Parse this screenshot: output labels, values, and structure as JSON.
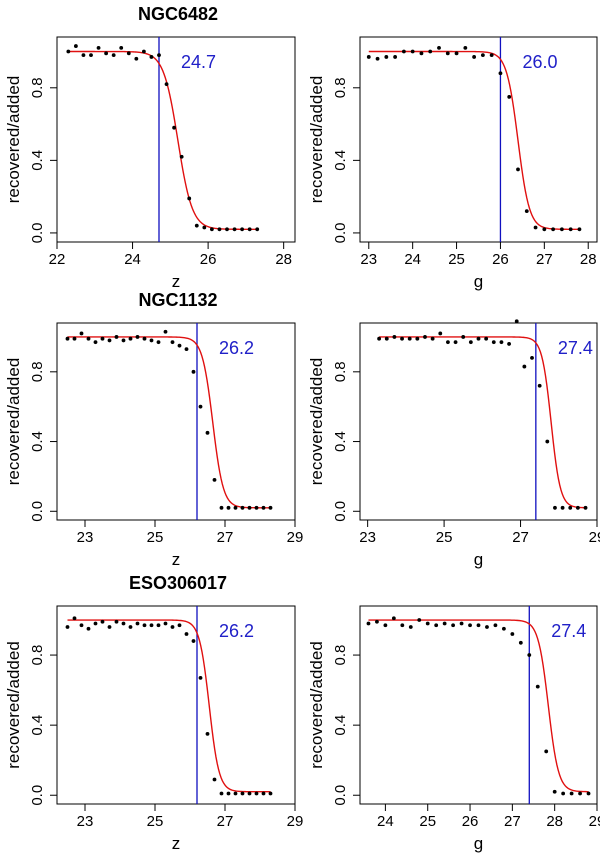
{
  "colors": {
    "curve": "#e01010",
    "limit_line": "#1010c0",
    "limit_text": "#2020c8",
    "points": "#000000"
  },
  "chart_data": [
    {
      "type": "scatter",
      "title": "NGC6482",
      "xlabel": "z",
      "ylabel": "recovered/added",
      "xlim": [
        22.0,
        28.3
      ],
      "ylim": [
        -0.05,
        1.08
      ],
      "xticks": [
        22,
        24,
        26,
        28
      ],
      "yticks": [
        0.0,
        0.4,
        0.8
      ],
      "limit": 24.7,
      "limit_label": "24.7",
      "curve_center": 25.2,
      "curve_width": 0.19,
      "points_x": [
        22.3,
        22.5,
        22.7,
        22.9,
        23.1,
        23.3,
        23.5,
        23.7,
        23.9,
        24.1,
        24.3,
        24.5,
        24.7,
        24.9,
        25.1,
        25.3,
        25.5,
        25.7,
        25.9,
        26.1,
        26.3,
        26.5,
        26.7,
        26.9,
        27.1,
        27.3
      ],
      "points_y": [
        1.0,
        1.03,
        0.98,
        0.98,
        1.02,
        0.99,
        0.98,
        1.02,
        0.99,
        0.96,
        1.0,
        0.97,
        0.98,
        0.82,
        0.58,
        0.42,
        0.19,
        0.04,
        0.03,
        0.02,
        0.02,
        0.02,
        0.02,
        0.02,
        0.02,
        0.02
      ]
    },
    {
      "type": "scatter",
      "title": "",
      "xlabel": "g",
      "ylabel": "recovered/added",
      "xlim": [
        22.8,
        28.2
      ],
      "ylim": [
        -0.05,
        1.08
      ],
      "xticks": [
        23,
        24,
        25,
        26,
        27,
        28
      ],
      "yticks": [
        0.0,
        0.4,
        0.8
      ],
      "limit": 26.0,
      "limit_label": "26.0",
      "curve_center": 26.4,
      "curve_width": 0.13,
      "points_x": [
        23.0,
        23.2,
        23.4,
        23.6,
        23.8,
        24.0,
        24.2,
        24.4,
        24.6,
        24.8,
        25.0,
        25.2,
        25.4,
        25.6,
        25.8,
        26.0,
        26.2,
        26.4,
        26.6,
        26.8,
        27.0,
        27.2,
        27.4,
        27.6,
        27.8
      ],
      "points_y": [
        0.97,
        0.96,
        0.97,
        0.97,
        1.0,
        1.0,
        0.99,
        1.0,
        1.02,
        0.99,
        0.99,
        1.02,
        0.97,
        0.98,
        0.98,
        0.88,
        0.75,
        0.35,
        0.12,
        0.03,
        0.02,
        0.02,
        0.02,
        0.02,
        0.02
      ]
    },
    {
      "type": "scatter",
      "title": "NGC1132",
      "xlabel": "z",
      "ylabel": "recovered/added",
      "xlim": [
        22.2,
        29.0
      ],
      "ylim": [
        -0.05,
        1.08
      ],
      "xticks": [
        23,
        25,
        27,
        29
      ],
      "yticks": [
        0.0,
        0.4,
        0.8
      ],
      "limit": 26.2,
      "limit_label": "26.2",
      "curve_center": 26.65,
      "curve_width": 0.15,
      "points_x": [
        22.5,
        22.7,
        22.9,
        23.1,
        23.3,
        23.5,
        23.7,
        23.9,
        24.1,
        24.3,
        24.5,
        24.7,
        24.9,
        25.1,
        25.3,
        25.5,
        25.7,
        25.9,
        26.1,
        26.3,
        26.5,
        26.7,
        26.9,
        27.1,
        27.3,
        27.5,
        27.7,
        27.9,
        28.1,
        28.3
      ],
      "points_y": [
        0.99,
        0.99,
        1.02,
        0.99,
        0.97,
        0.99,
        0.98,
        1.0,
        0.98,
        0.99,
        1.0,
        0.99,
        0.98,
        0.97,
        1.03,
        0.97,
        0.95,
        0.93,
        0.8,
        0.6,
        0.45,
        0.18,
        0.02,
        0.02,
        0.02,
        0.02,
        0.02,
        0.02,
        0.02,
        0.02
      ]
    },
    {
      "type": "scatter",
      "title": "",
      "xlabel": "g",
      "ylabel": "recovered/added",
      "xlim": [
        22.8,
        29.0
      ],
      "ylim": [
        -0.05,
        1.08
      ],
      "xticks": [
        23,
        25,
        27,
        29
      ],
      "yticks": [
        0.0,
        0.4,
        0.8
      ],
      "limit": 27.4,
      "limit_label": "27.4",
      "curve_center": 27.8,
      "curve_width": 0.12,
      "points_x": [
        23.3,
        23.5,
        23.7,
        23.9,
        24.1,
        24.3,
        24.5,
        24.7,
        24.9,
        25.1,
        25.3,
        25.5,
        25.7,
        25.9,
        26.1,
        26.3,
        26.5,
        26.7,
        26.9,
        27.1,
        27.3,
        27.5,
        27.7,
        27.9,
        28.1,
        28.3,
        28.5,
        28.7
      ],
      "points_y": [
        0.99,
        0.99,
        1.0,
        0.99,
        0.99,
        0.99,
        1.0,
        0.99,
        1.02,
        0.97,
        0.97,
        1.0,
        0.97,
        0.99,
        0.99,
        0.97,
        0.97,
        0.96,
        1.09,
        0.83,
        0.88,
        0.72,
        0.4,
        0.02,
        0.02,
        0.02,
        0.02,
        0.02
      ]
    },
    {
      "type": "scatter",
      "title": "ESO306017",
      "xlabel": "z",
      "ylabel": "recovered/added",
      "xlim": [
        22.2,
        29.0
      ],
      "ylim": [
        -0.05,
        1.08
      ],
      "xticks": [
        23,
        25,
        27,
        29
      ],
      "yticks": [
        0.0,
        0.4,
        0.8
      ],
      "limit": 26.2,
      "limit_label": "26.2",
      "curve_center": 26.55,
      "curve_width": 0.14,
      "points_x": [
        22.5,
        22.7,
        22.9,
        23.1,
        23.3,
        23.5,
        23.7,
        23.9,
        24.1,
        24.3,
        24.5,
        24.7,
        24.9,
        25.1,
        25.3,
        25.5,
        25.7,
        25.9,
        26.1,
        26.3,
        26.5,
        26.7,
        26.9,
        27.1,
        27.3,
        27.5,
        27.7,
        27.9,
        28.1,
        28.3
      ],
      "points_y": [
        0.96,
        1.01,
        0.97,
        0.95,
        0.98,
        0.99,
        0.96,
        0.99,
        0.98,
        0.96,
        0.98,
        0.97,
        0.97,
        0.97,
        0.98,
        0.96,
        0.97,
        0.92,
        0.88,
        0.67,
        0.35,
        0.09,
        0.01,
        0.01,
        0.01,
        0.01,
        0.01,
        0.01,
        0.01,
        0.01
      ]
    },
    {
      "type": "scatter",
      "title": "",
      "xlabel": "g",
      "ylabel": "recovered/added",
      "xlim": [
        23.4,
        29.0
      ],
      "ylim": [
        -0.05,
        1.08
      ],
      "xticks": [
        24,
        25,
        26,
        27,
        28,
        29
      ],
      "yticks": [
        0.0,
        0.4,
        0.8
      ],
      "limit": 27.4,
      "limit_label": "27.4",
      "curve_center": 27.85,
      "curve_width": 0.12,
      "points_x": [
        23.6,
        23.8,
        24.0,
        24.2,
        24.4,
        24.6,
        24.8,
        25.0,
        25.2,
        25.4,
        25.6,
        25.8,
        26.0,
        26.2,
        26.4,
        26.6,
        26.8,
        27.0,
        27.2,
        27.4,
        27.6,
        27.8,
        28.0,
        28.2,
        28.4,
        28.6,
        28.8
      ],
      "points_y": [
        0.98,
        0.99,
        0.97,
        1.01,
        0.97,
        0.96,
        1.0,
        0.98,
        0.97,
        0.98,
        0.97,
        0.98,
        0.97,
        0.97,
        0.96,
        0.97,
        0.95,
        0.92,
        0.87,
        0.8,
        0.62,
        0.25,
        0.02,
        0.01,
        0.01,
        0.01,
        0.01
      ]
    }
  ]
}
